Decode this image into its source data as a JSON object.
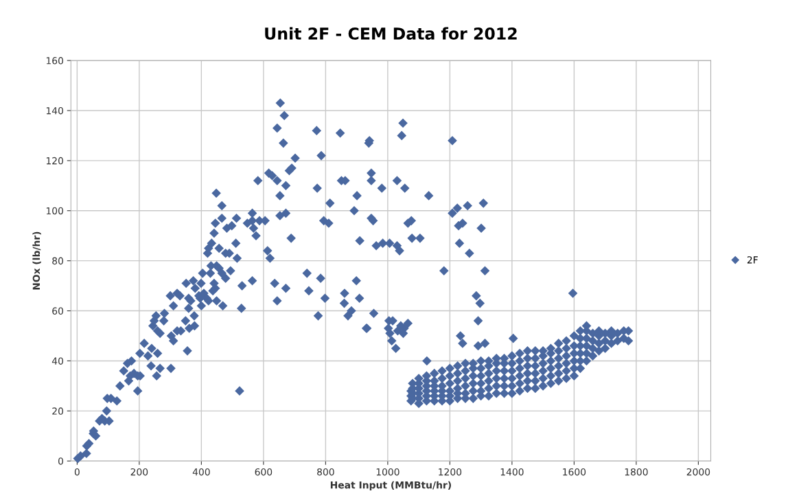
{
  "chart_data": {
    "type": "scatter",
    "title": "Unit 2F - CEM Data for 2012",
    "xlabel": "Heat Input (MMBtu/hr)",
    "ylabel": "NOx (lb/hr)",
    "xlim": [
      -20,
      2040
    ],
    "xticks": [
      0,
      200,
      400,
      600,
      800,
      1000,
      1200,
      1400,
      1600,
      1800,
      2000
    ],
    "ylim": [
      0,
      160
    ],
    "yticks": [
      0,
      20,
      40,
      60,
      80,
      100,
      120,
      140,
      160
    ],
    "grid": true,
    "legend": "right",
    "marker": "diamond",
    "series": [
      {
        "name": "2F",
        "color": "#4a68a0",
        "x": [
          2,
          11,
          30,
          31,
          38,
          52,
          60,
          53,
          72,
          80,
          89,
          103,
          95,
          97,
          109,
          128,
          138,
          150,
          162,
          175,
          171,
          166,
          183,
          195,
          203,
          195,
          202,
          216,
          228,
          238,
          240,
          259,
          256,
          267,
          302,
          244,
          248,
          254,
          259,
          267,
          279,
          281,
          303,
          310,
          300,
          310,
          322,
          331,
          322,
          334,
          351,
          349,
          355,
          361,
          374,
          380,
          359,
          366,
          359,
          377,
          378,
          399,
          404,
          392,
          396,
          400,
          408,
          417,
          423,
          429,
          431,
          441,
          445,
          437,
          449,
          469,
          449,
          457,
          466,
          478,
          494,
          420,
          423,
          433,
          441,
          445,
          448,
          466,
          466,
          457,
          478,
          490,
          482,
          498,
          511,
          513,
          515,
          531,
          529,
          548,
          564,
          564,
          587,
          605,
          568,
          576,
          582,
          564,
          523,
          613,
          621,
          617,
          628,
          644,
          636,
          644,
          653,
          653,
          644,
          654,
          667,
          664,
          672,
          672,
          683,
          691,
          702,
          672,
          689,
          740,
          746,
          773,
          771,
          786,
          784,
          776,
          798,
          794,
          810,
          814,
          847,
          851,
          863,
          861,
          860,
          872,
          883,
          892,
          901,
          910,
          899,
          909,
          933,
          941,
          939,
          1049,
          1045,
          1208,
          947,
          947,
          1030,
          981,
          1055,
          1132,
          947,
          953,
          1065,
          1076,
          1208,
          1224,
          1257,
          1308,
          1228,
          1241,
          1301,
          963,
          984,
          1006,
          1030,
          1038,
          1078,
          1104,
          1231,
          1263,
          1181,
          1313,
          1596,
          1285,
          1297,
          955,
          931,
          1291,
          1004,
          1016,
          1002,
          1007,
          1013,
          1026,
          1032,
          1042,
          1053,
          1050,
          1065,
          1234,
          1241,
          1291,
          1313,
          1404,
          1126,
          1075,
          1075,
          1075,
          1080,
          1080,
          1080,
          1080,
          1100,
          1100,
          1100,
          1100,
          1100,
          1100,
          1125,
          1125,
          1125,
          1125,
          1125,
          1125,
          1150,
          1150,
          1150,
          1150,
          1150,
          1150,
          1175,
          1175,
          1175,
          1175,
          1175,
          1175,
          1200,
          1200,
          1200,
          1200,
          1200,
          1200,
          1225,
          1225,
          1225,
          1225,
          1225,
          1225,
          1250,
          1250,
          1250,
          1250,
          1250,
          1250,
          1275,
          1275,
          1275,
          1275,
          1275,
          1275,
          1300,
          1300,
          1300,
          1300,
          1300,
          1300,
          1325,
          1325,
          1325,
          1325,
          1325,
          1325,
          1350,
          1350,
          1350,
          1350,
          1350,
          1350,
          1375,
          1375,
          1375,
          1375,
          1375,
          1375,
          1400,
          1400,
          1400,
          1400,
          1400,
          1400,
          1425,
          1425,
          1425,
          1425,
          1425,
          1425,
          1450,
          1450,
          1450,
          1450,
          1450,
          1450,
          1475,
          1475,
          1475,
          1475,
          1475,
          1475,
          1500,
          1500,
          1500,
          1500,
          1500,
          1500,
          1525,
          1525,
          1525,
          1525,
          1525,
          1525,
          1550,
          1550,
          1550,
          1550,
          1550,
          1550,
          1575,
          1575,
          1575,
          1575,
          1575,
          1575,
          1600,
          1600,
          1600,
          1600,
          1600,
          1600,
          1620,
          1620,
          1620,
          1620,
          1620,
          1620,
          1640,
          1640,
          1640,
          1640,
          1640,
          1640,
          1660,
          1660,
          1660,
          1660,
          1680,
          1680,
          1680,
          1680,
          1700,
          1700,
          1700,
          1720,
          1720,
          1720,
          1740,
          1740,
          1760,
          1760,
          1775,
          1775
        ],
        "values": [
          1,
          2,
          3,
          6,
          7,
          11,
          10,
          12,
          16,
          17,
          16,
          16,
          20,
          25,
          25,
          24,
          30,
          36,
          39,
          40,
          34,
          32,
          35,
          34,
          34,
          28,
          43,
          47,
          42,
          38,
          45,
          43,
          34,
          37,
          37,
          54,
          56,
          58,
          52,
          51,
          56,
          59,
          50,
          48,
          66,
          62,
          67,
          66,
          52,
          52,
          71,
          56,
          44,
          53,
          72,
          69,
          65,
          64,
          61,
          58,
          54,
          71,
          75,
          66,
          65,
          62,
          67,
          65,
          64,
          75,
          78,
          71,
          69,
          68,
          64,
          62,
          78,
          77,
          75,
          73,
          76,
          83,
          85,
          87,
          91,
          95,
          107,
          102,
          97,
          85,
          83,
          83,
          93,
          94,
          87,
          97,
          81,
          70,
          61,
          95,
          99,
          96,
          96,
          96,
          93,
          90,
          112,
          72,
          28,
          84,
          81,
          115,
          114,
          112,
          71,
          64,
          98,
          106,
          133,
          143,
          138,
          127,
          110,
          99,
          116,
          117,
          121,
          69,
          89,
          75,
          68,
          109,
          132,
          122,
          73,
          58,
          65,
          96,
          95,
          103,
          131,
          112,
          112,
          67,
          63,
          58,
          60,
          100,
          106,
          88,
          72,
          65,
          53,
          128,
          127,
          135,
          130,
          128,
          115,
          112,
          112,
          109,
          109,
          106,
          97,
          96,
          95,
          96,
          99,
          101,
          102,
          103,
          94,
          95,
          93,
          86,
          87,
          87,
          86,
          84,
          89,
          89,
          87,
          83,
          76,
          76,
          67,
          66,
          63,
          59,
          53,
          56,
          56,
          56,
          53,
          51,
          48,
          45,
          52,
          54,
          53,
          51,
          55,
          50,
          47,
          46,
          47,
          49,
          40,
          24,
          26,
          28,
          25,
          27,
          29,
          31,
          23,
          25,
          27,
          29,
          31,
          33,
          24,
          26,
          28,
          30,
          32,
          34,
          24,
          26,
          28,
          30,
          32,
          35,
          24,
          26,
          28,
          30,
          33,
          36,
          24,
          26,
          28,
          31,
          34,
          37,
          25,
          27,
          29,
          32,
          35,
          38,
          25,
          27,
          30,
          33,
          36,
          39,
          25,
          28,
          31,
          34,
          37,
          39,
          26,
          28,
          31,
          34,
          37,
          40,
          26,
          29,
          32,
          35,
          38,
          40,
          27,
          30,
          33,
          36,
          39,
          41,
          27,
          30,
          33,
          36,
          39,
          41,
          27,
          30,
          33,
          36,
          39,
          42,
          28,
          31,
          34,
          37,
          40,
          43,
          29,
          32,
          35,
          38,
          41,
          44,
          29,
          32,
          35,
          38,
          41,
          44,
          30,
          33,
          36,
          39,
          42,
          44,
          31,
          34,
          37,
          40,
          43,
          45,
          32,
          35,
          38,
          41,
          44,
          47,
          33,
          36,
          39,
          42,
          45,
          48,
          34,
          37,
          40,
          43,
          46,
          50,
          37,
          40,
          43,
          46,
          49,
          52,
          40,
          43,
          46,
          49,
          52,
          54,
          42,
          45,
          48,
          51,
          44,
          47,
          50,
          52,
          45,
          48,
          51,
          47,
          50,
          52,
          48,
          51,
          49,
          52,
          48,
          52
        ]
      }
    ]
  }
}
